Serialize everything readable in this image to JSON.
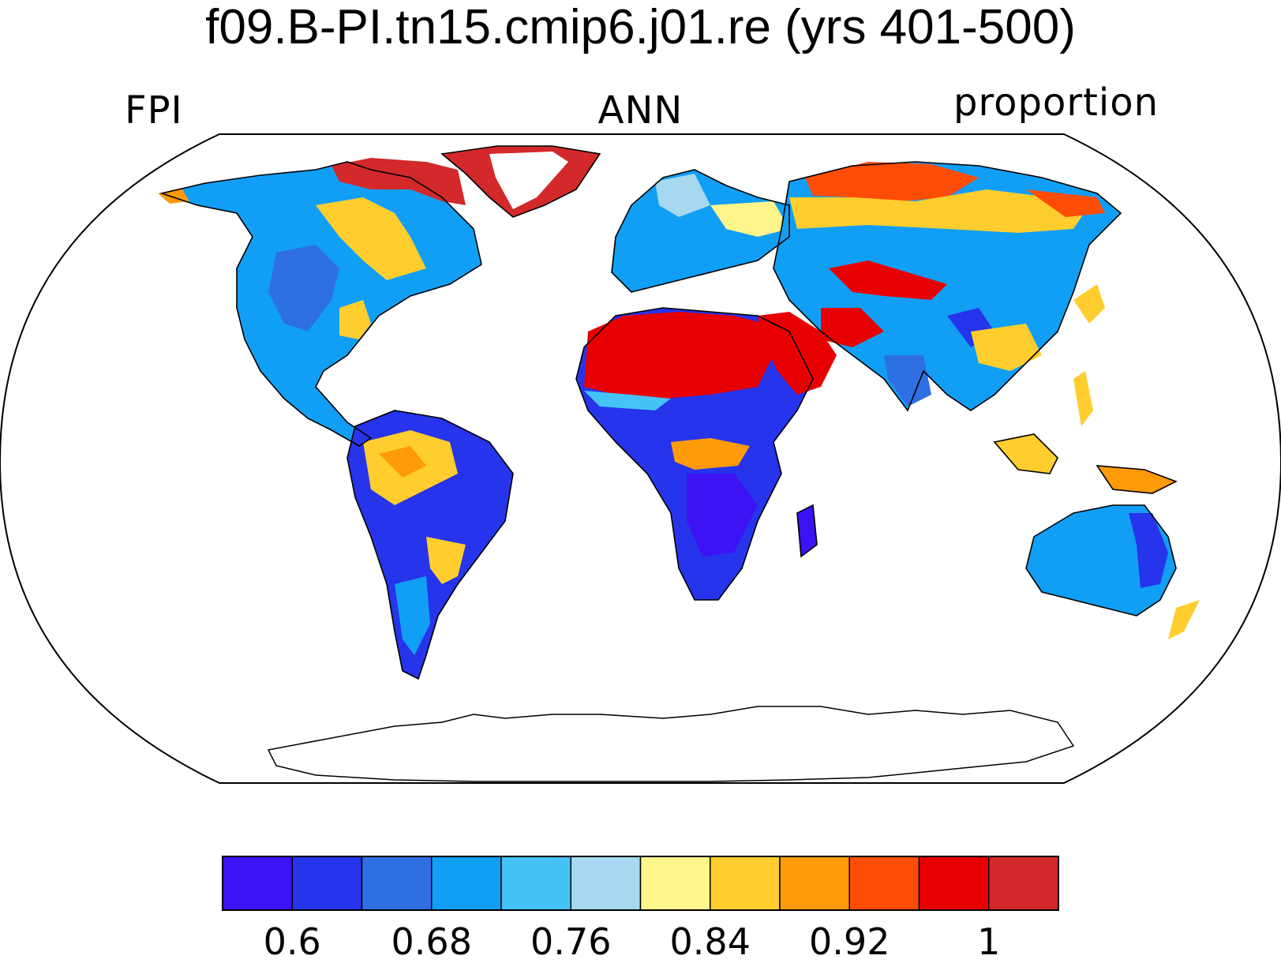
{
  "title": "f09.B-PI.tn15.cmip6.j01.re (yrs 401-500)",
  "subtitle_left": "FPI",
  "subtitle_center": "ANN",
  "subtitle_right": "proportion",
  "colorbar": {
    "colors": [
      "#3d12f5",
      "#2634eb",
      "#2f6fe4",
      "#119ff6",
      "#46c3f6",
      "#a6d8f0",
      "#fff58b",
      "#ffce2e",
      "#ff9a08",
      "#ff4d06",
      "#e80000",
      "#d3292b"
    ],
    "labels": [
      {
        "value": "0.6",
        "boundary": 1
      },
      {
        "value": "0.68",
        "boundary": 3
      },
      {
        "value": "0.76",
        "boundary": 5
      },
      {
        "value": "0.84",
        "boundary": 7
      },
      {
        "value": "0.92",
        "boundary": 9
      },
      {
        "value": "1",
        "boundary": 11
      }
    ]
  }
}
